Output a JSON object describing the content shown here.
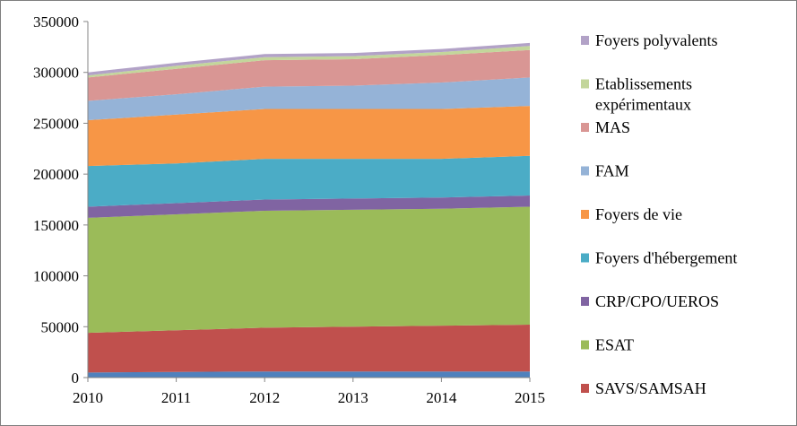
{
  "chart_data": {
    "type": "area",
    "stacked": true,
    "x": [
      "2010",
      "2011",
      "2012",
      "2013",
      "2014",
      "2015"
    ],
    "ylim": [
      0,
      350000
    ],
    "yticks": [
      "0",
      "50000",
      "100000",
      "150000",
      "200000",
      "250000",
      "300000",
      "350000"
    ],
    "grid": false,
    "legend_position": "right",
    "series": [
      {
        "name": "",
        "color": "#4f81bd",
        "values": [
          5000,
          5500,
          6000,
          6000,
          6000,
          6000
        ]
      },
      {
        "name": "SAVS/SAMSAH",
        "color": "#c0504d",
        "values": [
          39000,
          41000,
          43000,
          44000,
          45000,
          46000
        ]
      },
      {
        "name": "ESAT",
        "color": "#9bbb59",
        "values": [
          113000,
          114000,
          115000,
          115000,
          115000,
          116000
        ]
      },
      {
        "name": "CRP/CPO/UEROS",
        "color": "#8064a2",
        "values": [
          11000,
          11000,
          11000,
          11000,
          11000,
          11000
        ]
      },
      {
        "name": "Foyers d'hébergement",
        "color": "#4bacc6",
        "values": [
          40000,
          39000,
          40000,
          39000,
          38000,
          39000
        ]
      },
      {
        "name": "Foyers de vie",
        "color": "#f79646",
        "values": [
          45000,
          48000,
          49000,
          49000,
          49000,
          49000
        ]
      },
      {
        "name": "FAM",
        "color": "#95b3d7",
        "values": [
          19000,
          20000,
          22000,
          23000,
          26000,
          28000
        ]
      },
      {
        "name": "MAS",
        "color": "#d99694",
        "values": [
          23000,
          25000,
          26000,
          26000,
          27000,
          27000
        ]
      },
      {
        "name": "Etablissements expérimentaux",
        "color": "#c3d69b",
        "values": [
          2000,
          3000,
          3000,
          3000,
          3000,
          4000
        ]
      },
      {
        "name": "Foyers polyvalents",
        "color": "#b2a2c7",
        "values": [
          3000,
          3000,
          3000,
          3000,
          3000,
          3000
        ]
      }
    ],
    "legend": [
      {
        "label": "Foyers polyvalents",
        "color": "#b2a2c7"
      },
      {
        "label": "Etablissements",
        "label2": "expérimentaux",
        "color": "#c3d69b"
      },
      {
        "label": "MAS",
        "color": "#d99694"
      },
      {
        "label": "FAM",
        "color": "#95b3d7"
      },
      {
        "label": "Foyers de vie",
        "color": "#f79646"
      },
      {
        "label": "Foyers d'hébergement",
        "color": "#4bacc6"
      },
      {
        "label": "CRP/CPO/UEROS",
        "color": "#8064a2"
      },
      {
        "label": "ESAT",
        "color": "#9bbb59"
      },
      {
        "label": "SAVS/SAMSAH",
        "color": "#c0504d"
      }
    ]
  }
}
